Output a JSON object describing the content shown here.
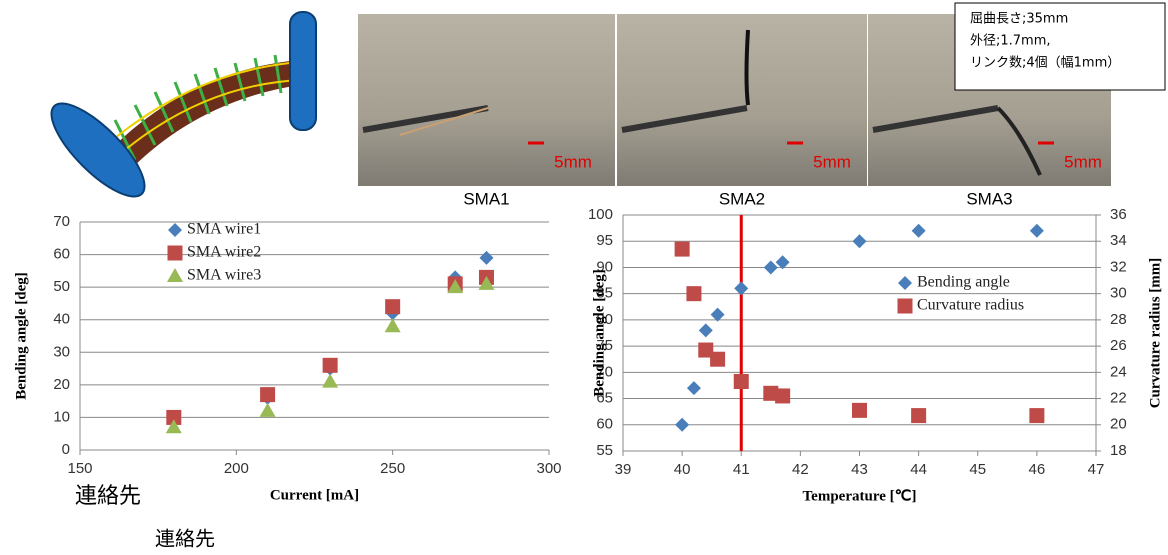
{
  "chart_data": [
    {
      "type": "scatter",
      "x_label": "Current [mA]",
      "y_label": "Bending angle [deg]",
      "xlim": [
        150,
        300
      ],
      "xticks": [
        150,
        200,
        250,
        300
      ],
      "ylim": [
        0,
        70
      ],
      "yticks": [
        0,
        10,
        20,
        30,
        40,
        50,
        60,
        70
      ],
      "grid": true,
      "legend": "upper left",
      "series": [
        {
          "name": "SMA wire1",
          "color": "#4a7ebb",
          "marker": "diamond",
          "x": [
            180,
            210,
            230,
            250,
            270,
            280
          ],
          "values": [
            9,
            16,
            25,
            42,
            53,
            59
          ]
        },
        {
          "name": "SMA wire2",
          "color": "#be4b48",
          "marker": "square",
          "x": [
            180,
            210,
            230,
            250,
            270,
            280
          ],
          "values": [
            10,
            17,
            26,
            44,
            51,
            53
          ]
        },
        {
          "name": "SMA wire3",
          "color": "#98b954",
          "marker": "triangle",
          "x": [
            180,
            210,
            230,
            250,
            270,
            280
          ],
          "values": [
            7,
            12,
            21,
            38,
            50,
            51
          ]
        }
      ]
    },
    {
      "type": "scatter",
      "x_label": "Temperature [℃]",
      "y_label": "Bending angle [deg]",
      "y2_label": "Curvature radius [mm]",
      "xlim": [
        39,
        47
      ],
      "xticks": [
        39,
        40,
        41,
        42,
        43,
        44,
        45,
        46,
        47
      ],
      "ylim": [
        55,
        100
      ],
      "yticks": [
        55,
        60,
        65,
        70,
        75,
        80,
        85,
        90,
        95,
        100
      ],
      "y2lim": [
        18,
        36
      ],
      "y2ticks": [
        18,
        20,
        22,
        24,
        26,
        28,
        30,
        32,
        34,
        36
      ],
      "grid": true,
      "legend": "center right",
      "reference_line_x": 41,
      "reference_color": "#e00000",
      "series": [
        {
          "name": "Bending angle",
          "color": "#4a7ebb",
          "marker": "diamond",
          "x": [
            40,
            40.2,
            40.4,
            40.6,
            41,
            41.5,
            41.7,
            43,
            44,
            46
          ],
          "values": [
            60,
            67,
            78,
            81,
            86,
            90,
            91,
            95,
            97,
            97
          ]
        },
        {
          "name": "Curvature radius",
          "color": "#be4b48",
          "marker": "square",
          "axis": "y2",
          "x": [
            40,
            40.2,
            40.4,
            40.6,
            41,
            41.5,
            41.7,
            43,
            44,
            46
          ],
          "values": [
            33.4,
            30,
            25.7,
            25,
            23.3,
            22.4,
            22.2,
            21.1,
            20.7,
            20.7
          ]
        }
      ]
    }
  ],
  "photos": [
    {
      "label": "SMA1",
      "scale": "5mm"
    },
    {
      "label": "SMA2",
      "scale": "5mm"
    },
    {
      "label": "SMA3",
      "scale": "5mm"
    }
  ],
  "info_box": {
    "lines": [
      "屈曲長さ;35mm",
      "外径;1.7mm,",
      "リンク数;4個（幅1mm）"
    ]
  },
  "contact": [
    "連絡先",
    "連絡先"
  ]
}
